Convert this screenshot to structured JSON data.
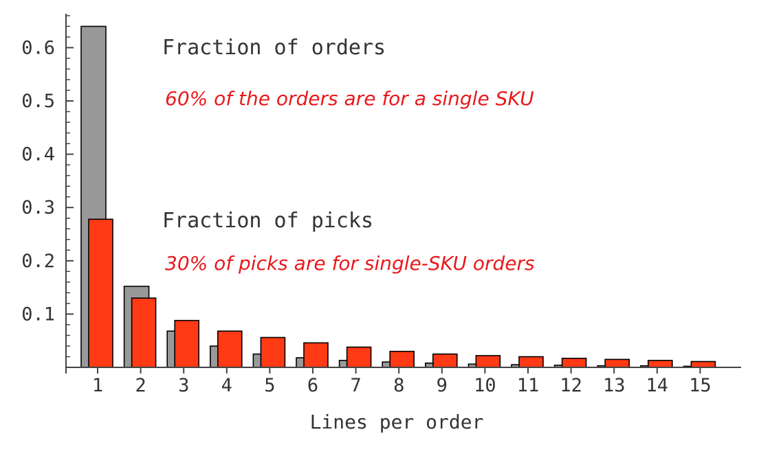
{
  "chart_data": {
    "type": "bar",
    "title": "",
    "xlabel": "Lines per order",
    "ylabel": "",
    "categories": [
      "1",
      "2",
      "3",
      "4",
      "5",
      "6",
      "7",
      "8",
      "9",
      "10",
      "11",
      "12",
      "13",
      "14",
      "15"
    ],
    "series": [
      {
        "name": "Fraction of orders",
        "color": "#999999",
        "values": [
          0.64,
          0.152,
          0.068,
          0.04,
          0.025,
          0.018,
          0.013,
          0.01,
          0.008,
          0.006,
          0.005,
          0.004,
          0.003,
          0.003,
          0.002
        ]
      },
      {
        "name": "Fraction of picks",
        "color": "#ff3a14",
        "values": [
          0.278,
          0.13,
          0.088,
          0.068,
          0.056,
          0.046,
          0.038,
          0.03,
          0.025,
          0.022,
          0.02,
          0.017,
          0.015,
          0.013,
          0.011
        ]
      }
    ],
    "yticks": [
      "0.1",
      "0.2",
      "0.3",
      "0.4",
      "0.5",
      "0.6"
    ],
    "ylim": [
      0,
      0.66
    ],
    "grid": false,
    "legend": "inline labels",
    "annotations": [
      {
        "text": "60% of the orders are for a single SKU",
        "color": "#e8191b"
      },
      {
        "text": "30% of picks are for single-SKU orders",
        "color": "#e8191b"
      }
    ]
  }
}
